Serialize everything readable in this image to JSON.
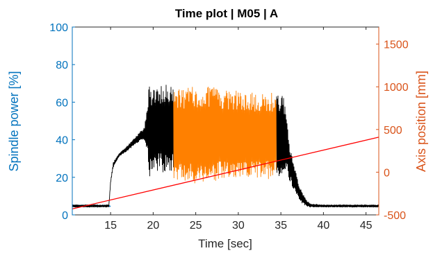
{
  "chart_data": {
    "type": "line",
    "title": "Time plot | M05 | A",
    "xlabel": "Time [sec]",
    "ylabel": "Spindle power [%]",
    "ylabel_right": "Axis position [mm]",
    "xlim": [
      10.5,
      46.5
    ],
    "ylim": [
      0,
      100
    ],
    "ylim_right": [
      -500,
      1700
    ],
    "x_ticks": [
      15,
      20,
      25,
      30,
      35,
      40,
      45
    ],
    "y_ticks": [
      0,
      20,
      40,
      60,
      80,
      100
    ],
    "y_ticks_right": [
      -500,
      0,
      500,
      1000,
      1500
    ],
    "grid": false,
    "legend": "none",
    "colors": {
      "left_axis": "#0072BD",
      "right_axis": "#D95319",
      "black_trace": "#000000",
      "orange_trace": "#FF8000",
      "red_line": "#FF0000"
    },
    "series": [
      {
        "color": "#0072BD",
        "axis": "left",
        "style": "noisy",
        "x": [
          10.5,
          15.0
        ],
        "y": [
          4.8,
          4.8
        ]
      },
      {
        "color": "#000000",
        "axis": "left",
        "style": "envelope",
        "x": [
          10.5,
          14.8,
          15.0,
          15.3,
          16.0,
          17.0,
          18.0,
          19.0,
          19.4,
          19.5,
          19.7,
          20.5,
          21.5,
          22.4
        ],
        "y_upper": [
          5.5,
          5.5,
          18.0,
          28.0,
          33.0,
          37.0,
          42.0,
          47.0,
          63.0,
          74.0,
          66.0,
          68.0,
          70.0,
          70.0
        ],
        "y_lower": [
          4.0,
          4.0,
          17.0,
          25.0,
          31.0,
          34.0,
          38.0,
          40.0,
          32.0,
          12.0,
          24.0,
          23.0,
          22.0,
          22.0
        ]
      },
      {
        "color": "#FF8000",
        "axis": "left",
        "style": "envelope",
        "x": [
          22.4,
          24.0,
          26.0,
          28.0,
          30.0,
          32.0,
          34.5
        ],
        "y_upper": [
          67.0,
          68.0,
          69.0,
          67.0,
          66.0,
          65.0,
          65.0
        ],
        "y_lower": [
          19.0,
          16.0,
          17.0,
          18.0,
          18.0,
          19.0,
          19.0
        ]
      },
      {
        "color": "#000000",
        "axis": "left",
        "style": "envelope",
        "x": [
          34.5,
          35.3,
          35.6,
          36.0,
          36.5,
          37.0,
          37.5,
          38.0,
          38.5,
          40.0,
          46.5
        ],
        "y_upper": [
          65.0,
          63.0,
          55.0,
          38.0,
          28.0,
          18.0,
          12.0,
          8.0,
          6.0,
          5.5,
          5.5
        ],
        "y_lower": [
          20.0,
          20.0,
          24.0,
          18.0,
          13.0,
          9.0,
          6.0,
          4.5,
          4.0,
          4.0,
          4.0
        ]
      },
      {
        "color": "#FF0000",
        "axis": "right",
        "style": "line",
        "x": [
          10.5,
          46.5
        ],
        "y": [
          -430,
          410
        ]
      }
    ]
  }
}
